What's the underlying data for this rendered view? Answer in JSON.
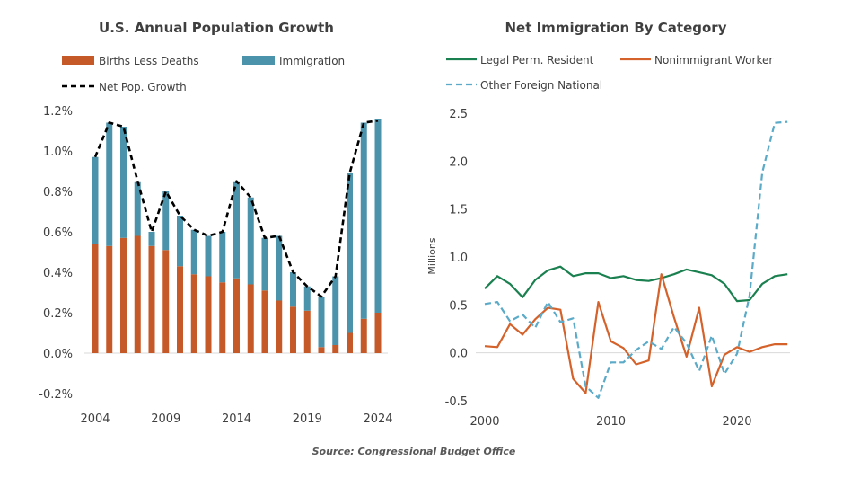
{
  "source": "Source: Congressional Budget Office",
  "chart_data": [
    {
      "type": "bar",
      "title": "U.S. Annual Population Growth",
      "stacked": true,
      "categories": [
        2004,
        2005,
        2006,
        2007,
        2008,
        2009,
        2010,
        2011,
        2012,
        2013,
        2014,
        2015,
        2016,
        2017,
        2018,
        2019,
        2020,
        2021,
        2022,
        2023,
        2024
      ],
      "xticks": [
        "2004",
        "2009",
        "2014",
        "2019",
        "2024"
      ],
      "yticks": [
        "-0.2%",
        "0.0%",
        "0.2%",
        "0.4%",
        "0.6%",
        "0.8%",
        "1.0%",
        "1.2%"
      ],
      "ylim": [
        -0.2,
        1.2
      ],
      "unit": "%",
      "series": [
        {
          "name": "Births Less Deaths",
          "kind": "bar",
          "color": "#c55a28",
          "values": [
            0.54,
            0.53,
            0.57,
            0.58,
            0.53,
            0.51,
            0.43,
            0.39,
            0.38,
            0.35,
            0.37,
            0.34,
            0.31,
            0.26,
            0.23,
            0.21,
            0.03,
            0.04,
            0.1,
            0.17,
            0.2
          ]
        },
        {
          "name": "Immigration",
          "kind": "bar",
          "color": "#4b93aa",
          "values": [
            0.43,
            0.61,
            0.55,
            0.27,
            0.07,
            0.29,
            0.25,
            0.22,
            0.2,
            0.25,
            0.48,
            0.43,
            0.26,
            0.32,
            0.17,
            0.12,
            0.25,
            0.34,
            0.79,
            0.97,
            0.96
          ]
        },
        {
          "name": "Net Pop. Growth",
          "kind": "line",
          "color": "#000000",
          "dashed": true,
          "values": [
            0.97,
            1.14,
            1.12,
            0.85,
            0.6,
            0.8,
            0.68,
            0.61,
            0.58,
            0.6,
            0.85,
            0.77,
            0.57,
            0.58,
            0.4,
            0.33,
            0.28,
            0.38,
            0.89,
            1.14,
            1.15
          ]
        }
      ]
    },
    {
      "type": "line",
      "title": "Net Immigration By Category",
      "ylabel": "Millions",
      "xticks": [
        "2000",
        "2010",
        "2020"
      ],
      "yticks": [
        "-0.5",
        "0.0",
        "0.5",
        "1.0",
        "1.5",
        "2.0",
        "2.5"
      ],
      "xlim": [
        2000,
        2024
      ],
      "ylim": [
        -0.5,
        2.5
      ],
      "x": [
        2000,
        2001,
        2002,
        2003,
        2004,
        2005,
        2006,
        2007,
        2008,
        2009,
        2010,
        2011,
        2012,
        2013,
        2014,
        2015,
        2016,
        2017,
        2018,
        2019,
        2020,
        2021,
        2022,
        2023,
        2024
      ],
      "series": [
        {
          "name": "Legal Perm. Resident",
          "color": "#1b8050",
          "dashed": false,
          "values": [
            0.67,
            0.8,
            0.72,
            0.58,
            0.76,
            0.86,
            0.9,
            0.8,
            0.83,
            0.83,
            0.78,
            0.8,
            0.76,
            0.75,
            0.78,
            0.82,
            0.87,
            0.84,
            0.81,
            0.72,
            0.54,
            0.55,
            0.72,
            0.8,
            0.82
          ]
        },
        {
          "name": "Nonimmigrant Worker",
          "color": "#d4622a",
          "dashed": false,
          "values": [
            0.07,
            0.06,
            0.3,
            0.19,
            0.35,
            0.47,
            0.45,
            -0.27,
            -0.42,
            0.53,
            0.12,
            0.05,
            -0.12,
            -0.08,
            0.82,
            0.37,
            -0.04,
            0.47,
            -0.35,
            -0.02,
            0.06,
            0.01,
            0.06,
            0.09,
            0.09
          ]
        },
        {
          "name": "Other Foreign National",
          "color": "#5aaac8",
          "dashed": true,
          "values": [
            0.51,
            0.53,
            0.33,
            0.4,
            0.26,
            0.53,
            0.32,
            0.36,
            -0.35,
            -0.47,
            -0.1,
            -0.1,
            0.03,
            0.12,
            0.04,
            0.27,
            0.1,
            -0.19,
            0.18,
            -0.22,
            -0.01,
            0.6,
            1.88,
            2.4,
            2.41
          ]
        }
      ]
    }
  ]
}
